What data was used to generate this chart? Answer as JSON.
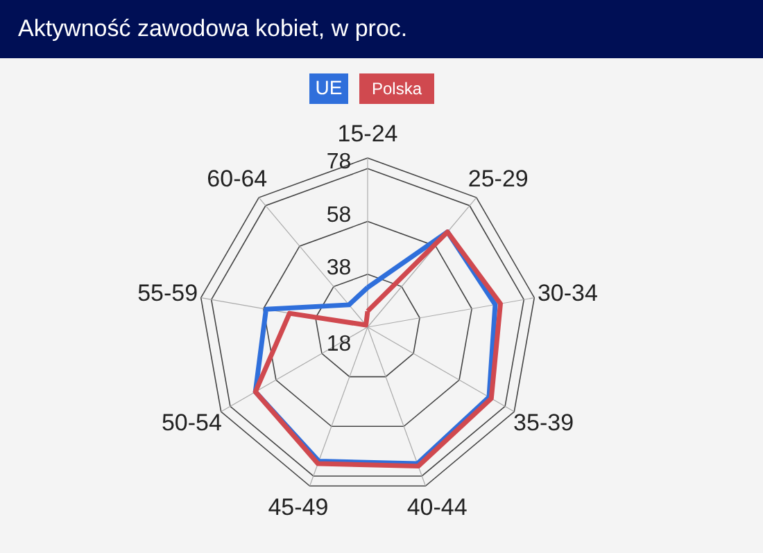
{
  "chart_data": {
    "type": "radar",
    "title": "Aktywność zawodowa kobiet, w proc.",
    "categories": [
      "15-24",
      "25-29",
      "30-34",
      "35-39",
      "40-44",
      "45-49",
      "50-54",
      "55-59",
      "60-64"
    ],
    "series": [
      {
        "name": "UE",
        "color": "#2f6fdb",
        "values": [
          33,
          65,
          67,
          71,
          73,
          72,
          67,
          57,
          29
        ]
      },
      {
        "name": "Polska",
        "color": "#d0494f",
        "values": [
          24,
          65,
          69,
          72,
          74,
          73,
          67,
          48,
          19
        ]
      }
    ],
    "ylim": [
      18,
      82
    ],
    "yticks": [
      18,
      38,
      58,
      78
    ],
    "grid": true,
    "legend": "top"
  }
}
